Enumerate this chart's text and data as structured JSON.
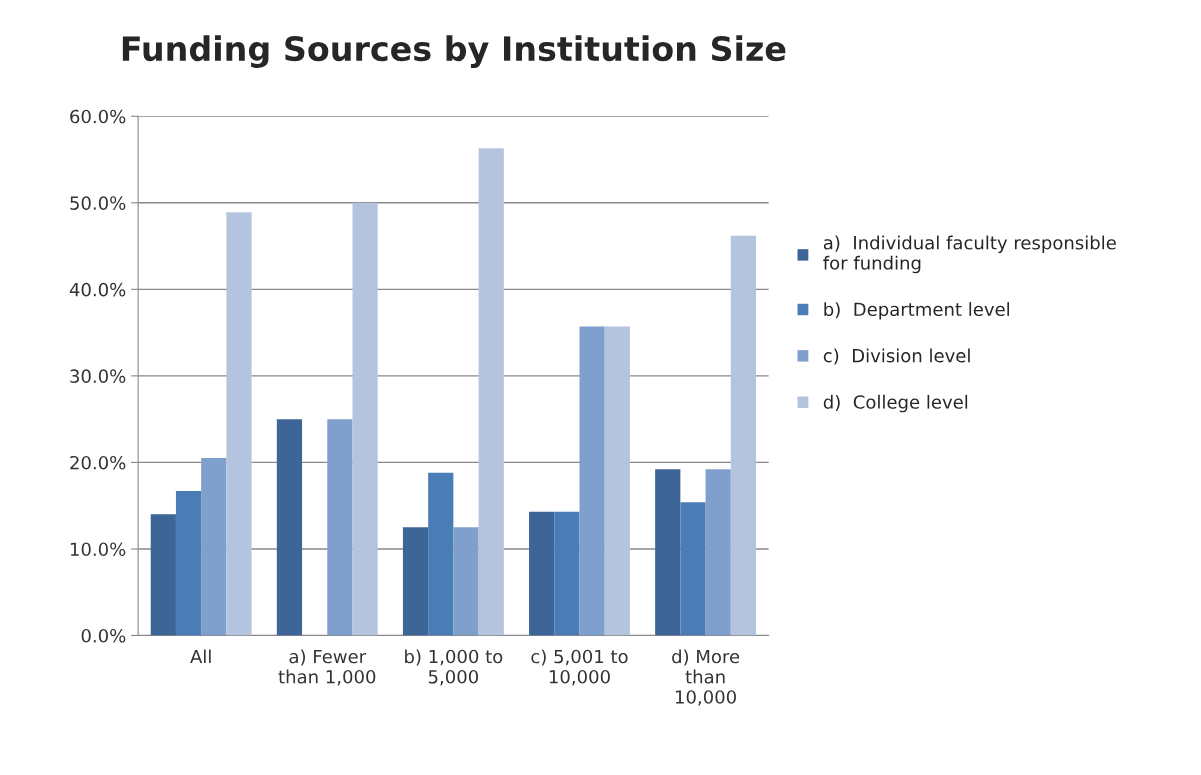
{
  "chart_data": {
    "type": "bar",
    "title": "Funding Sources by Institution Size",
    "categories": [
      "All",
      "a) Fewer\nthan 1,000",
      "b) 1,000 to\n5,000",
      "c) 5,001 to\n10,000",
      "d) More\nthan\n10,000"
    ],
    "series": [
      {
        "name": "a)  Individual faculty responsible\nfor funding",
        "color": "#3d6597",
        "values": [
          14.0,
          25.0,
          12.5,
          14.3,
          19.2
        ]
      },
      {
        "name": "b)  Department level",
        "color": "#4a7cb5",
        "values": [
          16.7,
          null,
          18.8,
          14.3,
          15.4
        ]
      },
      {
        "name": "c)  Division level",
        "color": "#7f9fcc",
        "values": [
          20.5,
          25.0,
          12.5,
          35.7,
          19.2
        ]
      },
      {
        "name": "d)  College level",
        "color": "#b4c4df",
        "values": [
          48.9,
          50.0,
          56.3,
          35.7,
          46.2
        ]
      }
    ],
    "ylim": [
      0,
      60
    ],
    "yticks": [
      {
        "value": 0,
        "label": "0.0%"
      },
      {
        "value": 10,
        "label": "10.0%"
      },
      {
        "value": 20,
        "label": "20.0%"
      },
      {
        "value": 30,
        "label": "30.0%"
      },
      {
        "value": 40,
        "label": "40.0%"
      },
      {
        "value": 50,
        "label": "50.0%"
      },
      {
        "value": 60,
        "label": "60.0%"
      }
    ],
    "grid": "y",
    "legend": "right"
  }
}
